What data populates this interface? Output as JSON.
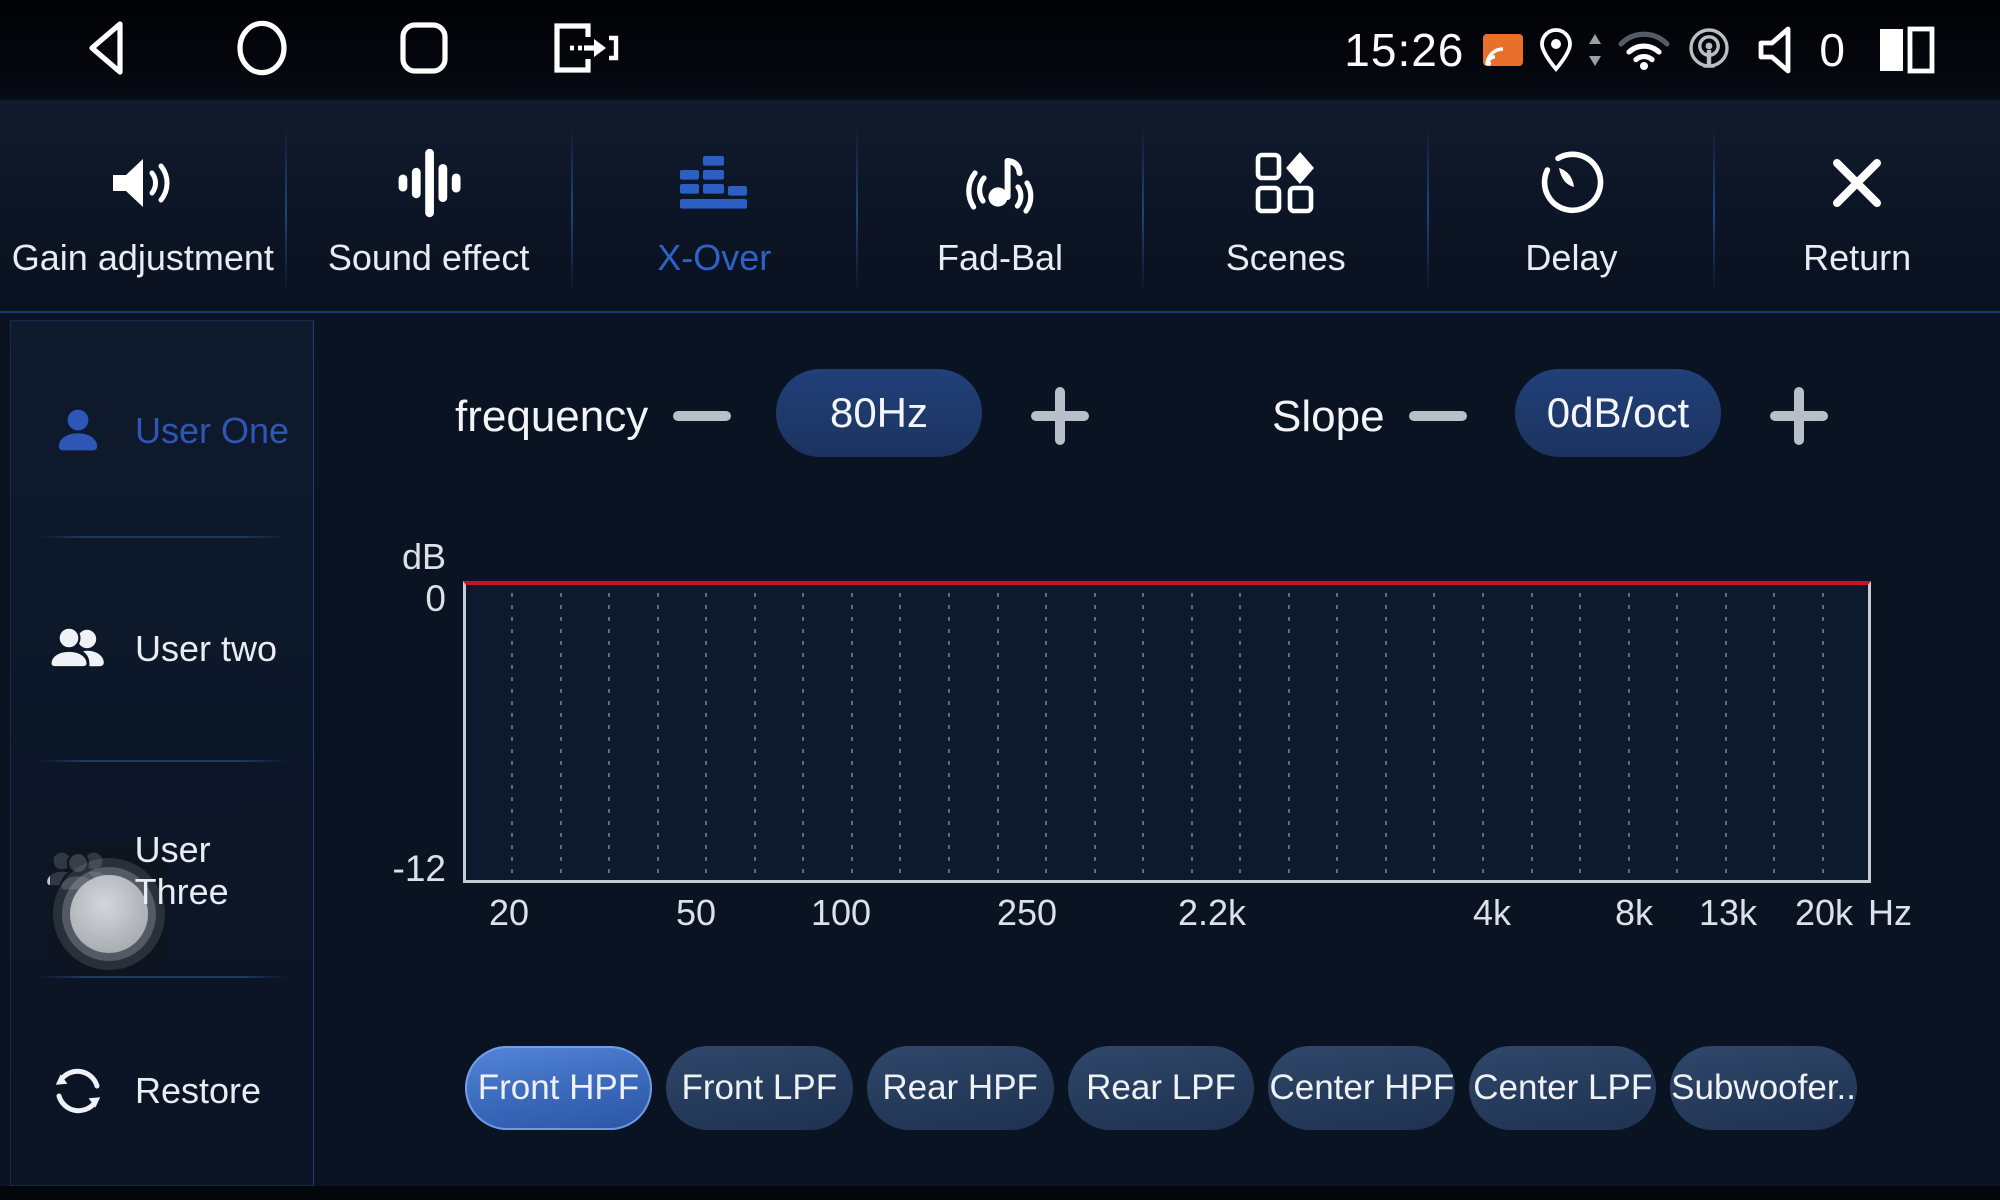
{
  "status_bar": {
    "time": "15:26",
    "volume_level": "0",
    "icons": {
      "nav-back-icon": "left-triangle",
      "nav-home-icon": "circle",
      "nav-recents-icon": "rounded-square",
      "exit-app-icon": "door-with-right-arrow",
      "cast-icon": "screen-cast-orange",
      "location-icon": "map-pin",
      "data-arrows-icon": "up-down-triangles",
      "wifi-icon": "wifi-signal-medium",
      "hotspot-icon": "broadcast-tower",
      "volume-icon": "speaker-outline",
      "split-screen-icon": "two-vertical-rectangles"
    }
  },
  "tab_bar": {
    "tabs": [
      {
        "id": "gain-adjustment",
        "label": "Gain adjustment",
        "icon": "speaker-waves-icon",
        "active": false
      },
      {
        "id": "sound-effect",
        "label": "Sound effect",
        "icon": "equalizer-bars-icon",
        "active": false
      },
      {
        "id": "x-over",
        "label": "X-Over",
        "icon": "crossover-histogram-icon",
        "active": true
      },
      {
        "id": "fad-bal",
        "label": "Fad-Bal",
        "icon": "music-note-waves-icon",
        "active": false
      },
      {
        "id": "scenes",
        "label": "Scenes",
        "icon": "squares-diamond-icon",
        "active": false
      },
      {
        "id": "delay",
        "label": "Delay",
        "icon": "timer-icon",
        "active": false
      },
      {
        "id": "return",
        "label": "Return",
        "icon": "close-x-icon",
        "active": false
      }
    ]
  },
  "sidebar": {
    "items": [
      {
        "id": "user-one",
        "label": "User One",
        "icon": "one-person-icon",
        "active": true
      },
      {
        "id": "user-two",
        "label": "User two",
        "icon": "two-person-icon",
        "active": false
      },
      {
        "id": "user-three",
        "label": "User Three",
        "icon": "three-person-icon",
        "active": false
      },
      {
        "id": "restore",
        "label": "Restore",
        "icon": "restore-cycle-icon",
        "active": false
      }
    ]
  },
  "controls": {
    "frequency": {
      "label": "frequency",
      "value": "80Hz"
    },
    "slope": {
      "label": "Slope",
      "value": "0dB/oct"
    }
  },
  "chart_data": {
    "type": "line",
    "ylabel": "dB",
    "ylim": [
      -12,
      0
    ],
    "ytick_labels": [
      "0",
      "-12"
    ],
    "x_scale": "log",
    "x_tick_labels": [
      "20",
      "50",
      "100",
      "250",
      "2.2k",
      "4k",
      "8k",
      "13k",
      "20k"
    ],
    "x_unit": "Hz",
    "grid": "vertical-dotted",
    "series": [
      {
        "name": "crossover-response",
        "color": "#c8112b",
        "points": [
          [
            20,
            0
          ],
          [
            20000,
            0
          ]
        ],
        "description": "flat response line at 0 dB across 20 Hz - 20 kHz"
      }
    ]
  },
  "speaker_buttons": {
    "selected": "Front HPF",
    "items": [
      {
        "label": "Front HPF",
        "active": true
      },
      {
        "label": "Front LPF",
        "active": false
      },
      {
        "label": "Rear HPF",
        "active": false
      },
      {
        "label": "Rear LPF",
        "active": false
      },
      {
        "label": "Center HPF",
        "active": false
      },
      {
        "label": "Center LPF",
        "active": false
      },
      {
        "label": "Subwoofer..",
        "active": false
      }
    ]
  },
  "colors": {
    "accent_blue": "#2f62c6",
    "value_pill_bg": "#1d3765",
    "selected_button_blue": "#3a68ba",
    "chart_line_red": "#c8112b",
    "background": "#0a1322",
    "cast_orange": "#e8702a"
  }
}
